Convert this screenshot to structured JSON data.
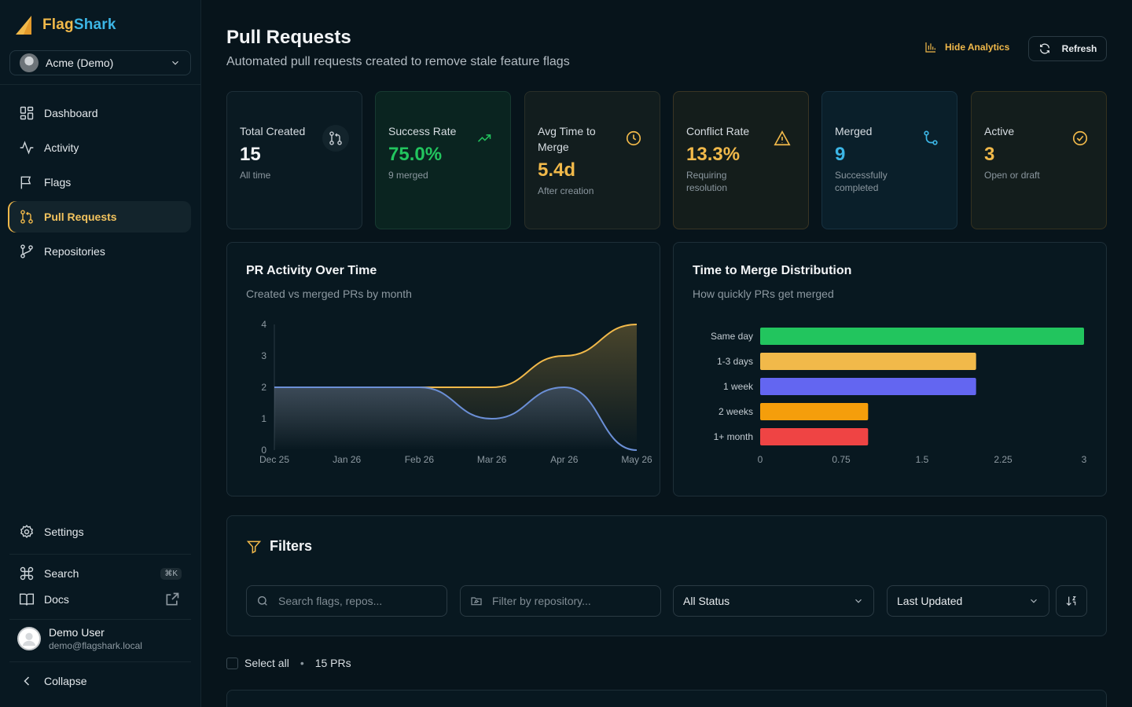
{
  "brand": {
    "name_part1": "Flag",
    "name_part2": "Shark"
  },
  "org": {
    "name": "Acme (Demo)"
  },
  "sidebar": {
    "items": [
      {
        "label": "Dashboard",
        "icon": "grid-icon"
      },
      {
        "label": "Activity",
        "icon": "activity-icon"
      },
      {
        "label": "Flags",
        "icon": "flag-icon"
      },
      {
        "label": "Pull Requests",
        "icon": "git-pull-request-icon"
      },
      {
        "label": "Repositories",
        "icon": "git-branch-icon"
      }
    ],
    "settings": "Settings",
    "search": "Search",
    "search_shortcut": "⌘K",
    "docs": "Docs",
    "collapse": "Collapse"
  },
  "user": {
    "name": "Demo User",
    "email": "demo@flagshark.local"
  },
  "header": {
    "title": "Pull Requests",
    "subtitle": "Automated pull requests created to remove stale feature flags",
    "hide_analytics": "Hide Analytics",
    "refresh": "Refresh"
  },
  "stats": [
    {
      "label": "Total Created",
      "value": "15",
      "note": "All time",
      "color": "#f2f4f6",
      "icon": "git-pull-request-icon"
    },
    {
      "label": "Success Rate",
      "value": "75.0%",
      "note": "9 merged",
      "color": "#22c55e",
      "icon": "trending-up-icon"
    },
    {
      "label": "Avg Time to Merge",
      "value": "5.4d",
      "note": "After creation",
      "color": "#f1b94a",
      "icon": "clock-icon"
    },
    {
      "label": "Conflict Rate",
      "value": "13.3%",
      "note": "Requiring resolution",
      "color": "#f1b94a",
      "icon": "alert-triangle-icon"
    },
    {
      "label": "Merged",
      "value": "9",
      "note": "Successfully completed",
      "color": "#3cb6e6",
      "icon": "git-merge-icon"
    },
    {
      "label": "Active",
      "value": "3",
      "note": "Open or draft",
      "color": "#f1b94a",
      "icon": "check-circle-icon"
    }
  ],
  "charts": {
    "activity": {
      "title": "PR Activity Over Time",
      "subtitle": "Created vs merged PRs by month"
    },
    "distribution": {
      "title": "Time to Merge Distribution",
      "subtitle": "How quickly PRs get merged"
    }
  },
  "chart_data": [
    {
      "type": "area",
      "title": "PR Activity Over Time",
      "categories": [
        "Dec 25",
        "Jan 26",
        "Feb 26",
        "Mar 26",
        "Apr 26",
        "May 26"
      ],
      "series": [
        {
          "values": [
            2,
            2,
            2,
            2,
            3,
            4
          ],
          "color": "#f1b94a"
        },
        {
          "values": [
            2,
            2,
            2,
            1,
            2,
            0
          ],
          "color": "#6b8fd6"
        }
      ],
      "ylim": [
        0,
        4
      ],
      "yticks": [
        0,
        1,
        2,
        3,
        4
      ],
      "grid": false
    },
    {
      "type": "bar",
      "orientation": "horizontal",
      "title": "Time to Merge Distribution",
      "categories": [
        "Same day",
        "1-3 days",
        "1 week",
        "2 weeks",
        "1+ month"
      ],
      "values": [
        3,
        2,
        2,
        1,
        1
      ],
      "colors": [
        "#22c55e",
        "#f1b94a",
        "#6366f1",
        "#f59e0b",
        "#ef4444"
      ],
      "xlim": [
        0,
        3
      ],
      "xticks": [
        "0",
        "0.75",
        "1.5",
        "2.25",
        "3"
      ],
      "grid": false
    }
  ],
  "filters": {
    "title": "Filters",
    "search_placeholder": "Search flags, repos...",
    "repo_placeholder": "Filter by repository...",
    "status": "All Status",
    "sort": "Last Updated"
  },
  "list": {
    "select_all": "Select all",
    "count": "15 PRs"
  }
}
